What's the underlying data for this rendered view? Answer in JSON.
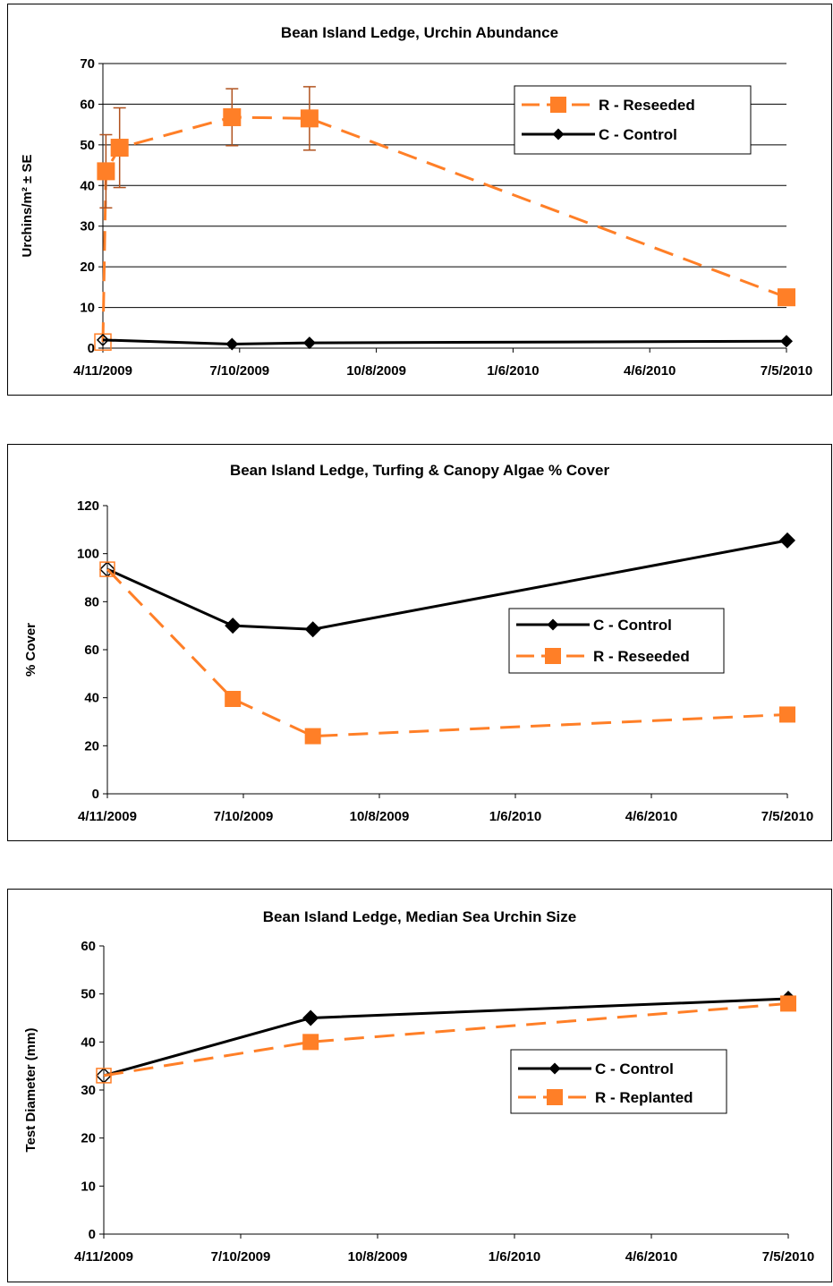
{
  "chart_data": [
    {
      "type": "line",
      "title": "Bean Island Ledge, Urchin Abundance",
      "ylabel": "Urchins/m² ± SE",
      "xlabel": "",
      "ylim": [
        0,
        70
      ],
      "yticks": [
        "0",
        "10",
        "20",
        "30",
        "40",
        "50",
        "60",
        "70"
      ],
      "xticks": [
        "4/11/2009",
        "7/10/2009",
        "10/8/2009",
        "1/6/2010",
        "4/6/2010",
        "7/5/2010"
      ],
      "grid": true,
      "legend": "top-right",
      "series": [
        {
          "name": "R - Reseeded",
          "color": "#FF7F27",
          "style": "dashed",
          "marker": "square",
          "points": [
            {
              "x": "2009-04-11",
              "y": 1.5
            },
            {
              "x": "2009-04-13",
              "y": 43.5,
              "err": 9
            },
            {
              "x": "2009-04-22",
              "y": 49.3,
              "err": 9.8
            },
            {
              "x": "2009-07-05",
              "y": 56.8,
              "err": 7
            },
            {
              "x": "2009-08-25",
              "y": 56.5,
              "err": 7.8
            },
            {
              "x": "2010-07-05",
              "y": 12.5
            }
          ]
        },
        {
          "name": "C - Control",
          "color": "#000000",
          "style": "solid",
          "marker": "diamond",
          "points": [
            {
              "x": "2009-04-11",
              "y": 2
            },
            {
              "x": "2009-07-05",
              "y": 1
            },
            {
              "x": "2009-08-25",
              "y": 1.3
            },
            {
              "x": "2010-07-05",
              "y": 1.7
            }
          ]
        }
      ]
    },
    {
      "type": "line",
      "title": "Bean Island Ledge, Turfing & Canopy Algae % Cover",
      "ylabel": "% Cover",
      "xlabel": "",
      "ylim": [
        0,
        120
      ],
      "yticks": [
        "0",
        "20",
        "40",
        "60",
        "80",
        "100",
        "120"
      ],
      "xticks": [
        "4/11/2009",
        "7/10/2009",
        "10/8/2009",
        "1/6/2010",
        "4/6/2010",
        "7/5/2010"
      ],
      "grid": false,
      "legend": "center-right",
      "series": [
        {
          "name": "C - Control",
          "color": "#000000",
          "style": "solid",
          "marker": "diamond",
          "points": [
            {
              "x": "2009-04-11",
              "y": 93.5
            },
            {
              "x": "2009-07-03",
              "y": 70
            },
            {
              "x": "2009-08-25",
              "y": 68.5
            },
            {
              "x": "2010-07-05",
              "y": 105.5
            }
          ]
        },
        {
          "name": "R - Reseeded",
          "color": "#FF7F27",
          "style": "dashed",
          "marker": "square",
          "points": [
            {
              "x": "2009-04-11",
              "y": 93.5
            },
            {
              "x": "2009-07-03",
              "y": 39.5
            },
            {
              "x": "2009-08-25",
              "y": 24
            },
            {
              "x": "2010-07-05",
              "y": 33
            }
          ]
        }
      ]
    },
    {
      "type": "line",
      "title": "Bean Island Ledge, Median Sea Urchin Size",
      "ylabel": "Test Diameter (mm)",
      "xlabel": "",
      "ylim": [
        0,
        60
      ],
      "yticks": [
        "0",
        "10",
        "20",
        "30",
        "40",
        "50",
        "60"
      ],
      "xticks": [
        "4/11/2009",
        "7/10/2009",
        "10/8/2009",
        "1/6/2010",
        "4/6/2010",
        "7/5/2010"
      ],
      "grid": false,
      "legend": "center-right",
      "series": [
        {
          "name": "C - Control",
          "color": "#000000",
          "style": "solid",
          "marker": "diamond",
          "points": [
            {
              "x": "2009-04-11",
              "y": 33
            },
            {
              "x": "2009-08-25",
              "y": 45
            },
            {
              "x": "2010-07-05",
              "y": 49
            }
          ]
        },
        {
          "name": "R - Replanted",
          "color": "#FF7F27",
          "style": "dashed",
          "marker": "square",
          "points": [
            {
              "x": "2009-04-11",
              "y": 33
            },
            {
              "x": "2009-08-25",
              "y": 40
            },
            {
              "x": "2010-07-05",
              "y": 48
            }
          ]
        }
      ]
    }
  ]
}
